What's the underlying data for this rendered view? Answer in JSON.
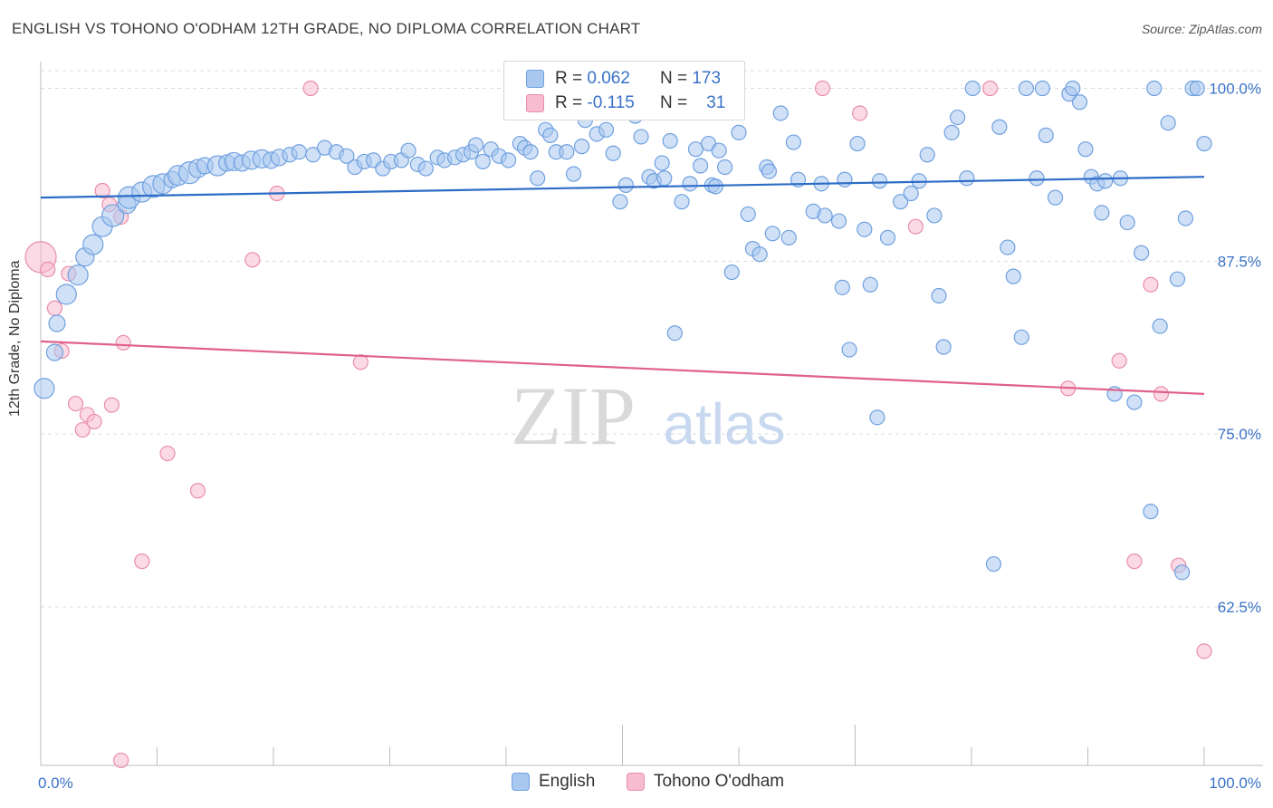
{
  "title": "ENGLISH VS TOHONO O'ODHAM 12TH GRADE, NO DIPLOMA CORRELATION CHART",
  "source": "Source: ZipAtlas.com",
  "watermark": {
    "zip": "ZIP",
    "atlas": "atlas"
  },
  "legend_top": {
    "english": {
      "r_label": "R =",
      "r_value": "0.062",
      "n_label": "N =",
      "n_value": "173"
    },
    "tohono": {
      "r_label": "R =",
      "r_value": "-0.115",
      "n_label": "N =",
      "n_value": "31"
    }
  },
  "bottom_legend": {
    "english": "English",
    "tohono": "Tohono O'odham"
  },
  "colors": {
    "english_fill": "#a9c8f0",
    "english_stroke": "#6fa0df",
    "english_line": "#2d6cc6",
    "tohono_fill": "#f7bccf",
    "tohono_stroke": "#e88eab",
    "tohono_line": "#e0608c",
    "tick_label": "#3a72c8",
    "grid": "#dcdcdc"
  },
  "chart_data": {
    "type": "scatter",
    "ylabel": "12th Grade, No Diploma",
    "xlabel": "",
    "x_tick_labels": [
      "0.0%",
      "100.0%"
    ],
    "y_tick_labels": [
      "100.0%",
      "87.5%",
      "75.0%",
      "62.5%"
    ],
    "y_ticks": [
      100.0,
      87.5,
      75.0,
      62.5
    ],
    "xlim": [
      0,
      100
    ],
    "ylim": [
      51.5,
      101.5
    ],
    "grid": true,
    "series": [
      {
        "name": "English",
        "r": 0.062,
        "n": 173,
        "trend": [
          [
            0,
            92.1
          ],
          [
            100,
            93.6
          ]
        ],
        "points": [
          [
            0.3,
            78.3,
            22
          ],
          [
            1.2,
            80.9,
            18
          ],
          [
            1.4,
            83.0,
            18
          ],
          [
            2.2,
            85.1,
            22
          ],
          [
            3.2,
            86.5,
            22
          ],
          [
            3.8,
            87.8,
            20
          ],
          [
            4.5,
            88.7,
            22
          ],
          [
            5.3,
            90.0,
            22
          ],
          [
            6.2,
            90.8,
            24
          ],
          [
            7.4,
            91.6,
            20
          ],
          [
            7.6,
            92.1,
            24
          ],
          [
            8.7,
            92.5,
            22
          ],
          [
            9.7,
            92.9,
            24
          ],
          [
            10.5,
            93.1,
            22
          ],
          [
            11.3,
            93.4,
            18
          ],
          [
            11.8,
            93.7,
            22
          ],
          [
            12.8,
            93.9,
            24
          ],
          [
            13.5,
            94.2,
            20
          ],
          [
            14.1,
            94.4,
            18
          ],
          [
            15.2,
            94.4,
            22
          ],
          [
            16.0,
            94.6,
            18
          ],
          [
            16.6,
            94.7,
            20
          ],
          [
            17.3,
            94.6,
            18
          ],
          [
            18.1,
            94.8,
            20
          ],
          [
            19.0,
            94.9,
            20
          ],
          [
            19.8,
            94.8,
            18
          ],
          [
            20.5,
            95.0,
            18
          ],
          [
            21.4,
            95.2,
            16
          ],
          [
            22.2,
            95.4,
            16
          ],
          [
            23.4,
            95.2,
            16
          ],
          [
            24.4,
            95.7,
            16
          ],
          [
            25.4,
            95.4,
            16
          ],
          [
            26.3,
            95.1,
            16
          ],
          [
            27.0,
            94.3,
            16
          ],
          [
            27.8,
            94.7,
            16
          ],
          [
            28.6,
            94.8,
            16
          ],
          [
            29.4,
            94.2,
            16
          ],
          [
            30.1,
            94.7,
            16
          ],
          [
            31.0,
            94.8,
            16
          ],
          [
            31.6,
            95.5,
            16
          ],
          [
            32.4,
            94.5,
            16
          ],
          [
            33.1,
            94.2,
            16
          ],
          [
            34.1,
            95.0,
            16
          ],
          [
            34.7,
            94.8,
            16
          ],
          [
            35.6,
            95.0,
            16
          ],
          [
            36.3,
            95.2,
            16
          ],
          [
            37.0,
            95.4,
            16
          ],
          [
            37.4,
            95.9,
            16
          ],
          [
            38.0,
            94.7,
            16
          ],
          [
            38.7,
            95.6,
            16
          ],
          [
            39.4,
            95.1,
            16
          ],
          [
            40.2,
            94.8,
            16
          ],
          [
            41.2,
            96.0,
            16
          ],
          [
            41.6,
            95.7,
            16
          ],
          [
            42.1,
            95.4,
            16
          ],
          [
            42.7,
            93.5,
            16
          ],
          [
            43.4,
            97.0,
            16
          ],
          [
            43.8,
            96.6,
            16
          ],
          [
            44.3,
            95.4,
            16
          ],
          [
            45.2,
            95.4,
            16
          ],
          [
            45.8,
            93.8,
            16
          ],
          [
            46.5,
            95.8,
            16
          ],
          [
            46.8,
            97.7,
            16
          ],
          [
            47.8,
            96.7,
            16
          ],
          [
            48.6,
            97.0,
            16
          ],
          [
            49.2,
            95.3,
            16
          ],
          [
            49.8,
            91.8,
            16
          ],
          [
            50.3,
            93.0,
            16
          ],
          [
            51.1,
            98.0,
            16
          ],
          [
            51.6,
            96.5,
            16
          ],
          [
            52.3,
            93.6,
            16
          ],
          [
            52.7,
            93.3,
            16
          ],
          [
            53.4,
            94.6,
            16
          ],
          [
            53.6,
            93.5,
            16
          ],
          [
            54.1,
            96.2,
            16
          ],
          [
            54.5,
            82.3,
            16
          ],
          [
            55.1,
            91.8,
            16
          ],
          [
            55.8,
            93.1,
            16
          ],
          [
            56.3,
            95.6,
            16
          ],
          [
            56.7,
            94.4,
            16
          ],
          [
            57.4,
            96.0,
            16
          ],
          [
            57.7,
            93.0,
            16
          ],
          [
            58.0,
            92.9,
            16
          ],
          [
            58.3,
            95.5,
            16
          ],
          [
            58.8,
            94.3,
            16
          ],
          [
            59.4,
            86.7,
            16
          ],
          [
            60.0,
            96.8,
            16
          ],
          [
            60.8,
            90.9,
            16
          ],
          [
            61.2,
            88.4,
            16
          ],
          [
            61.8,
            88.0,
            16
          ],
          [
            62.4,
            94.3,
            16
          ],
          [
            62.6,
            94.0,
            16
          ],
          [
            62.9,
            89.5,
            16
          ],
          [
            63.6,
            98.2,
            16
          ],
          [
            64.3,
            89.2,
            16
          ],
          [
            64.7,
            96.1,
            16
          ],
          [
            65.1,
            93.4,
            16
          ],
          [
            66.4,
            91.1,
            16
          ],
          [
            67.1,
            93.1,
            16
          ],
          [
            67.4,
            90.8,
            16
          ],
          [
            68.6,
            90.4,
            16
          ],
          [
            68.9,
            85.6,
            16
          ],
          [
            69.1,
            93.4,
            16
          ],
          [
            69.5,
            81.1,
            16
          ],
          [
            70.2,
            96.0,
            16
          ],
          [
            70.8,
            89.8,
            16
          ],
          [
            71.3,
            85.8,
            16
          ],
          [
            71.9,
            76.2,
            16
          ],
          [
            72.1,
            93.3,
            16
          ],
          [
            72.8,
            89.2,
            16
          ],
          [
            73.9,
            91.8,
            16
          ],
          [
            74.8,
            92.4,
            16
          ],
          [
            75.5,
            93.3,
            16
          ],
          [
            76.2,
            95.2,
            16
          ],
          [
            76.8,
            90.8,
            16
          ],
          [
            77.2,
            85.0,
            16
          ],
          [
            77.6,
            81.3,
            16
          ],
          [
            78.3,
            96.8,
            16
          ],
          [
            78.8,
            97.9,
            16
          ],
          [
            79.6,
            93.5,
            16
          ],
          [
            80.1,
            100.0,
            16
          ],
          [
            81.9,
            65.6,
            16
          ],
          [
            82.4,
            97.2,
            16
          ],
          [
            83.1,
            88.5,
            16
          ],
          [
            83.6,
            86.4,
            16
          ],
          [
            84.3,
            82.0,
            16
          ],
          [
            84.7,
            100.0,
            16
          ],
          [
            85.6,
            93.5,
            16
          ],
          [
            86.1,
            100.0,
            16
          ],
          [
            86.4,
            96.6,
            16
          ],
          [
            87.2,
            92.1,
            16
          ],
          [
            88.4,
            99.6,
            16
          ],
          [
            88.7,
            100.0,
            16
          ],
          [
            89.3,
            99.0,
            16
          ],
          [
            89.8,
            95.6,
            16
          ],
          [
            90.3,
            93.6,
            16
          ],
          [
            90.8,
            93.1,
            16
          ],
          [
            91.2,
            91.0,
            16
          ],
          [
            91.5,
            93.3,
            16
          ],
          [
            92.3,
            77.9,
            16
          ],
          [
            92.8,
            93.5,
            16
          ],
          [
            93.4,
            90.3,
            16
          ],
          [
            94.0,
            77.3,
            16
          ],
          [
            94.6,
            88.1,
            16
          ],
          [
            95.4,
            69.4,
            16
          ],
          [
            95.7,
            100.0,
            16
          ],
          [
            96.2,
            82.8,
            16
          ],
          [
            96.9,
            97.5,
            16
          ],
          [
            97.7,
            86.2,
            16
          ],
          [
            98.1,
            65.0,
            16
          ],
          [
            98.4,
            90.6,
            16
          ],
          [
            99.0,
            100.0,
            16
          ],
          [
            99.4,
            100.0,
            16
          ],
          [
            100.0,
            96.0,
            16
          ]
        ]
      },
      {
        "name": "Tohono O'odham",
        "r": -0.115,
        "n": 31,
        "trend": [
          [
            0,
            81.7
          ],
          [
            100,
            77.9
          ]
        ],
        "points": [
          [
            0.0,
            87.8,
            34
          ],
          [
            0.6,
            86.9,
            16
          ],
          [
            1.2,
            84.1,
            16
          ],
          [
            1.8,
            81.0,
            16
          ],
          [
            2.4,
            86.6,
            16
          ],
          [
            3.0,
            77.2,
            16
          ],
          [
            3.6,
            75.3,
            16
          ],
          [
            4.0,
            76.4,
            16
          ],
          [
            4.6,
            75.9,
            16
          ],
          [
            5.3,
            92.6,
            16
          ],
          [
            5.9,
            91.6,
            16
          ],
          [
            6.1,
            77.1,
            16
          ],
          [
            6.9,
            90.7,
            16
          ],
          [
            7.1,
            81.6,
            16
          ],
          [
            8.7,
            65.8,
            16
          ],
          [
            10.9,
            73.6,
            16
          ],
          [
            13.5,
            70.9,
            16
          ],
          [
            18.2,
            87.6,
            16
          ],
          [
            20.3,
            92.4,
            16
          ],
          [
            23.2,
            100.0,
            16
          ],
          [
            27.5,
            80.2,
            16
          ],
          [
            42.0,
            100.0,
            16
          ],
          [
            55.3,
            100.0,
            16
          ],
          [
            67.2,
            100.0,
            16
          ],
          [
            70.4,
            98.2,
            16
          ],
          [
            75.2,
            90.0,
            16
          ],
          [
            81.6,
            100.0,
            16
          ],
          [
            88.3,
            78.3,
            16
          ],
          [
            92.7,
            80.3,
            16
          ],
          [
            94.0,
            65.8,
            16
          ],
          [
            95.4,
            85.8,
            16
          ],
          [
            96.3,
            77.9,
            16
          ],
          [
            97.8,
            65.5,
            16
          ],
          [
            100.0,
            59.3,
            16
          ],
          [
            6.9,
            51.4,
            16
          ]
        ]
      }
    ]
  }
}
